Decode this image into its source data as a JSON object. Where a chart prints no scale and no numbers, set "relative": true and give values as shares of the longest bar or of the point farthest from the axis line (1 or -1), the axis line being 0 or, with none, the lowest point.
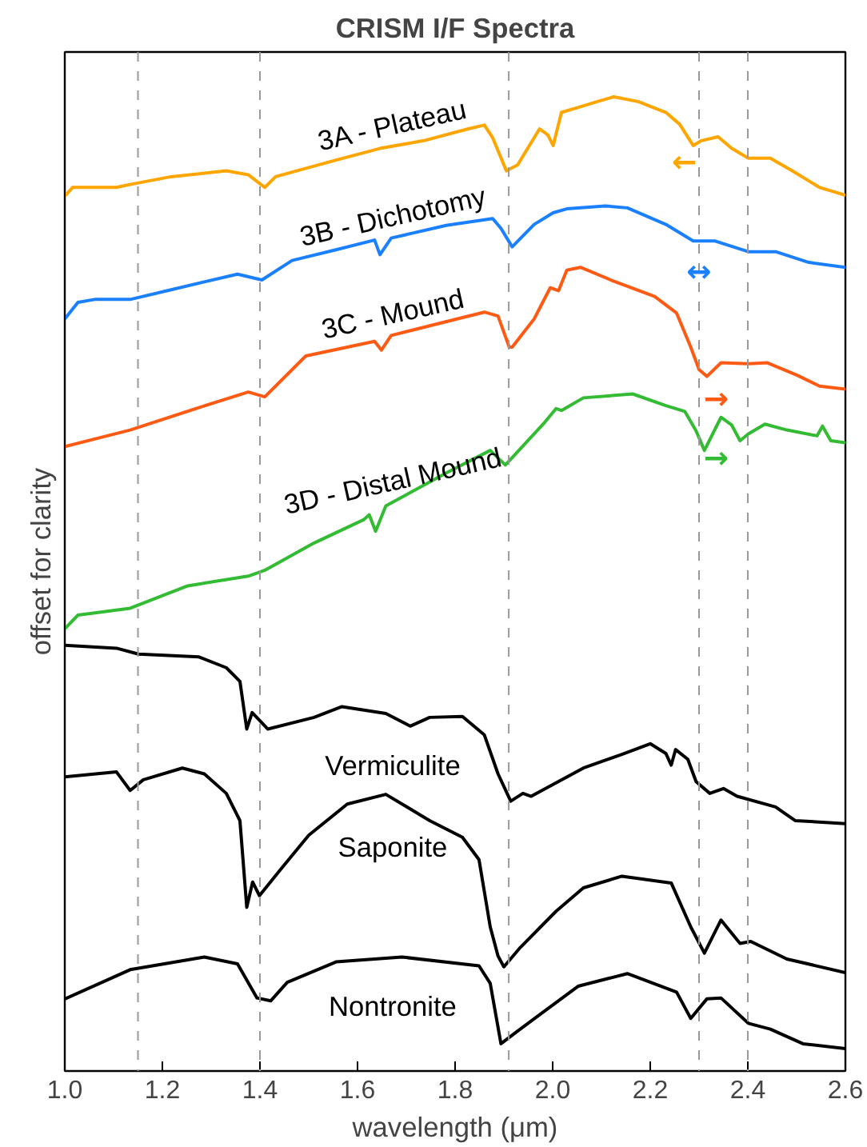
{
  "chart_data": {
    "type": "line",
    "title": "CRISM I/F Spectra",
    "xlabel": "wavelength (μm)",
    "ylabel": "offset for clarity",
    "relative": true,
    "xlim": [
      1.0,
      2.6
    ],
    "xticks": [
      {
        "value": 1.0,
        "label": "1.0"
      },
      {
        "value": 1.2,
        "label": "1.2"
      },
      {
        "value": 1.4,
        "label": "1.4"
      },
      {
        "value": 1.6,
        "label": "1.6"
      },
      {
        "value": 1.8,
        "label": "1.8"
      },
      {
        "value": 2.0,
        "label": "2.0"
      },
      {
        "value": 2.2,
        "label": "2.2"
      },
      {
        "value": 2.4,
        "label": "2.4"
      },
      {
        "value": 2.6,
        "label": "2.6"
      }
    ],
    "grid": false,
    "marker": "none",
    "line_style": "solid",
    "series": [
      {
        "name": "3A - Plateau",
        "color": "#ffa500",
        "x": [
          1.0,
          1.016,
          1.106,
          1.134,
          1.218,
          1.331,
          1.376,
          1.41,
          1.432,
          1.556,
          1.646,
          1.736,
          1.826,
          1.86,
          1.877,
          1.905,
          1.928,
          1.973,
          1.99,
          2.001,
          2.018,
          2.052,
          2.091,
          2.125,
          2.176,
          2.232,
          2.26,
          2.288,
          2.305,
          2.339,
          2.367,
          2.401,
          2.446,
          2.491,
          2.547,
          2.6
        ],
        "values": [
          0.898,
          0.907,
          0.907,
          0.91,
          0.918,
          0.924,
          0.92,
          0.907,
          0.918,
          0.935,
          0.947,
          0.955,
          0.967,
          0.971,
          0.958,
          0.924,
          0.93,
          0.967,
          0.961,
          0.95,
          0.984,
          0.989,
          0.995,
          1.0,
          0.995,
          0.984,
          0.972,
          0.95,
          0.955,
          0.959,
          0.947,
          0.937,
          0.937,
          0.924,
          0.907,
          0.899
        ]
      },
      {
        "name": "3B - Dichotomy",
        "color": "#1a80ff",
        "x": [
          1.0,
          1.027,
          1.061,
          1.134,
          1.218,
          1.354,
          1.404,
          1.466,
          1.556,
          1.635,
          1.646,
          1.669,
          1.782,
          1.877,
          1.894,
          1.917,
          1.962,
          2.001,
          2.029,
          2.108,
          2.153,
          2.232,
          2.288,
          2.333,
          2.401,
          2.457,
          2.525,
          2.6
        ],
        "values": [
          0.772,
          0.789,
          0.792,
          0.792,
          0.802,
          0.818,
          0.812,
          0.832,
          0.843,
          0.853,
          0.838,
          0.855,
          0.868,
          0.875,
          0.865,
          0.846,
          0.869,
          0.881,
          0.885,
          0.888,
          0.886,
          0.869,
          0.852,
          0.852,
          0.841,
          0.841,
          0.83,
          0.825
        ]
      },
      {
        "name": "3C - Mound",
        "color": "#ff5a14",
        "x": [
          1.0,
          1.134,
          1.275,
          1.376,
          1.41,
          1.494,
          1.635,
          1.649,
          1.669,
          1.804,
          1.86,
          1.888,
          1.911,
          1.917,
          1.962,
          1.995,
          2.012,
          2.029,
          2.057,
          2.119,
          2.209,
          2.254,
          2.283,
          2.3,
          2.316,
          2.345,
          2.401,
          2.44,
          2.502,
          2.547,
          2.6
        ],
        "values": [
          0.641,
          0.658,
          0.681,
          0.697,
          0.692,
          0.734,
          0.749,
          0.74,
          0.755,
          0.772,
          0.779,
          0.775,
          0.743,
          0.743,
          0.772,
          0.804,
          0.801,
          0.822,
          0.825,
          0.812,
          0.795,
          0.778,
          0.743,
          0.72,
          0.713,
          0.727,
          0.726,
          0.727,
          0.714,
          0.703,
          0.7
        ]
      },
      {
        "name": "3D - Distal Mound",
        "color": "#33bb33",
        "x": [
          1.0,
          1.027,
          1.134,
          1.252,
          1.376,
          1.41,
          1.511,
          1.613,
          1.624,
          1.637,
          1.658,
          1.782,
          1.872,
          1.903,
          1.984,
          2.007,
          2.018,
          2.063,
          2.164,
          2.232,
          2.271,
          2.294,
          2.311,
          2.345,
          2.367,
          2.384,
          2.401,
          2.435,
          2.48,
          2.542,
          2.553,
          2.57,
          2.6
        ],
        "values": [
          0.454,
          0.468,
          0.475,
          0.498,
          0.508,
          0.514,
          0.542,
          0.566,
          0.571,
          0.554,
          0.58,
          0.614,
          0.637,
          0.622,
          0.666,
          0.68,
          0.678,
          0.691,
          0.695,
          0.683,
          0.677,
          0.657,
          0.637,
          0.671,
          0.663,
          0.647,
          0.654,
          0.664,
          0.658,
          0.652,
          0.662,
          0.647,
          0.645
        ]
      },
      {
        "name": "Vermiculite",
        "color": "#000000",
        "x": [
          1.0,
          1.106,
          1.151,
          1.275,
          1.331,
          1.359,
          1.373,
          1.384,
          1.416,
          1.511,
          1.568,
          1.658,
          1.708,
          1.748,
          1.815,
          1.86,
          1.888,
          1.914,
          1.939,
          1.956,
          2.063,
          2.142,
          2.2,
          2.232,
          2.243,
          2.252,
          2.277,
          2.294,
          2.322,
          2.35,
          2.378,
          2.457,
          2.497,
          2.6
        ],
        "values": [
          0.437,
          0.434,
          0.428,
          0.425,
          0.414,
          0.4,
          0.351,
          0.368,
          0.351,
          0.363,
          0.374,
          0.367,
          0.354,
          0.363,
          0.364,
          0.345,
          0.305,
          0.277,
          0.285,
          0.282,
          0.311,
          0.325,
          0.336,
          0.326,
          0.314,
          0.33,
          0.32,
          0.297,
          0.285,
          0.29,
          0.282,
          0.271,
          0.257,
          0.254
        ]
      },
      {
        "name": "Saponite",
        "color": "#000000",
        "x": [
          1.0,
          1.106,
          1.134,
          1.161,
          1.241,
          1.286,
          1.331,
          1.359,
          1.373,
          1.385,
          1.399,
          1.444,
          1.5,
          1.579,
          1.658,
          1.748,
          1.815,
          1.849,
          1.872,
          1.888,
          1.9,
          1.934,
          2.007,
          2.063,
          2.142,
          2.243,
          2.283,
          2.311,
          2.345,
          2.384,
          2.406,
          2.48,
          2.6
        ],
        "values": [
          0.302,
          0.307,
          0.288,
          0.299,
          0.311,
          0.305,
          0.285,
          0.257,
          0.168,
          0.194,
          0.18,
          0.208,
          0.242,
          0.274,
          0.284,
          0.257,
          0.24,
          0.217,
          0.148,
          0.118,
          0.107,
          0.127,
          0.164,
          0.188,
          0.2,
          0.193,
          0.148,
          0.121,
          0.155,
          0.131,
          0.133,
          0.115,
          0.101
        ]
      },
      {
        "name": "Nontronite",
        "color": "#000000",
        "x": [
          1.0,
          1.134,
          1.286,
          1.354,
          1.394,
          1.422,
          1.456,
          1.556,
          1.691,
          1.849,
          1.872,
          1.894,
          1.928,
          2.052,
          2.153,
          2.254,
          2.283,
          2.316,
          2.345,
          2.401,
          2.446,
          2.513,
          2.6
        ],
        "values": [
          0.074,
          0.104,
          0.117,
          0.11,
          0.075,
          0.072,
          0.091,
          0.112,
          0.117,
          0.108,
          0.09,
          0.028,
          0.041,
          0.087,
          0.1,
          0.081,
          0.054,
          0.074,
          0.075,
          0.049,
          0.043,
          0.028,
          0.023
        ]
      }
    ],
    "ref_lines": [
      {
        "axis": "x",
        "value": 1.15,
        "color": "#999999",
        "line_style": "dashed"
      },
      {
        "axis": "x",
        "value": 1.4,
        "color": "#999999",
        "line_style": "dashed"
      },
      {
        "axis": "x",
        "value": 1.91,
        "color": "#999999",
        "line_style": "dashed"
      },
      {
        "axis": "x",
        "value": 2.3,
        "color": "#999999",
        "line_style": "dashed"
      },
      {
        "axis": "x",
        "value": 2.4,
        "color": "#999999",
        "line_style": "dashed"
      }
    ],
    "annotations": [
      {
        "text": "←",
        "x": 2.27,
        "y": 0.965
      },
      {
        "text": "↔",
        "x": 2.3,
        "y": 0.852
      },
      {
        "text": "→",
        "x": 2.335,
        "y": 0.722
      },
      {
        "text": "→",
        "x": 2.335,
        "y": 0.661
      }
    ]
  }
}
